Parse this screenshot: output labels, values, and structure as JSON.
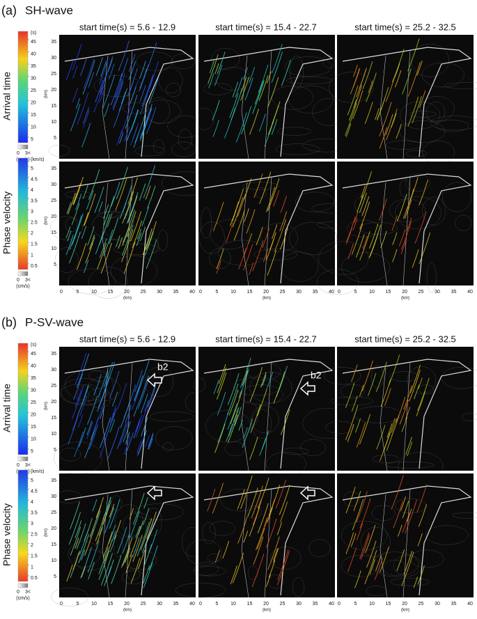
{
  "panels": [
    {
      "label": "(a)",
      "title": "SH-wave",
      "column_titles": [
        "start time(s) = 5.6 - 12.9",
        "start time(s) = 15.4 - 22.7",
        "start time(s) = 25.2 - 32.5"
      ],
      "rows": [
        {
          "label": "Arrival time",
          "unit": "(s)",
          "ticks": [
            5,
            10,
            15,
            20,
            25,
            30,
            35,
            40,
            45
          ]
        },
        {
          "label": "Phase velocity",
          "unit": "(km/s)",
          "ticks": [
            0.5,
            1,
            1.5,
            2,
            2.5,
            3,
            3.5,
            4,
            4.5,
            5
          ]
        }
      ],
      "amplitude": {
        "ticks": [
          0,
          "3<"
        ],
        "unit": "(cm/s)"
      },
      "x_ticks": [
        0,
        5,
        10,
        15,
        20,
        25,
        30,
        35,
        40
      ],
      "y_ticks": [
        5,
        10,
        15,
        20,
        25,
        30,
        35
      ],
      "axis_unit": "(km)",
      "annotations": []
    },
    {
      "label": "(b)",
      "title": "P-SV-wave",
      "column_titles": [
        "start time(s) = 5.6 - 12.9",
        "start time(s) = 15.4 - 22.7",
        "start time(s) = 25.2 - 32.5"
      ],
      "rows": [
        {
          "label": "Arrival time",
          "unit": "(s)",
          "ticks": [
            5,
            10,
            15,
            20,
            25,
            30,
            35,
            40,
            45
          ]
        },
        {
          "label": "Phase velocity",
          "unit": "(km/s)",
          "ticks": [
            0.5,
            1,
            1.5,
            2,
            2.5,
            3,
            3.5,
            4,
            4.5,
            5
          ]
        }
      ],
      "amplitude": {
        "ticks": [
          0,
          "3<"
        ],
        "unit": "(cm/s)"
      },
      "x_ticks": [
        0,
        5,
        10,
        15,
        20,
        25,
        30,
        35,
        40
      ],
      "y_ticks": [
        5,
        10,
        15,
        20,
        25,
        30,
        35
      ],
      "axis_unit": "(km)",
      "annotations": [
        "b2",
        "b2"
      ]
    }
  ]
}
